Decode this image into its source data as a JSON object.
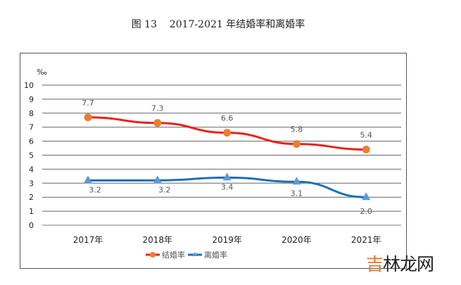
{
  "title": "图 13    2017-2021 年结婚率和离婚率",
  "watermark": {
    "first": "吉",
    "rest": "林龙网"
  },
  "chart_data": {
    "type": "line",
    "title": "图 13    2017-2021 年结婚率和离婚率",
    "ylabel": "‰",
    "ylim": [
      0,
      10
    ],
    "yticks": [
      "0",
      "1",
      "2",
      "3",
      "4",
      "5",
      "6",
      "7",
      "8",
      "9",
      "10"
    ],
    "categories": [
      "2017年",
      "2018年",
      "2019年",
      "2020年",
      "2021年"
    ],
    "legend_position": "bottom",
    "series": [
      {
        "name": "结婚率",
        "values": [
          7.7,
          7.3,
          6.6,
          5.8,
          5.4
        ],
        "labels": [
          "7.7",
          "7.3",
          "6.6",
          "5.8",
          "5.4"
        ],
        "color": "#e8231c",
        "marker_color": "#ed7d31",
        "marker": "circle"
      },
      {
        "name": "离婚率",
        "values": [
          3.2,
          3.2,
          3.4,
          3.1,
          2.0
        ],
        "labels": [
          "3.2",
          "3.2",
          "3.4",
          "3.1",
          "2.0"
        ],
        "color": "#1f6fb5",
        "marker_color": "#5b9bd5",
        "marker": "triangle"
      }
    ]
  }
}
